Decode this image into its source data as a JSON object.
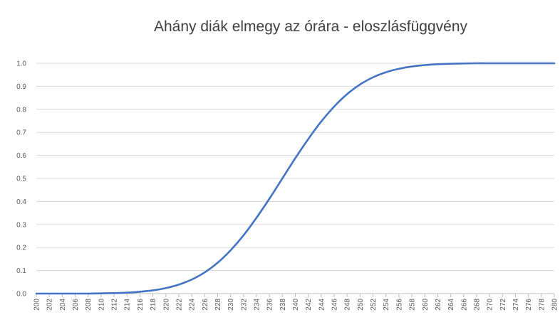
{
  "chart_data": {
    "type": "line",
    "title": "Ahány diák elmegy az órára  -  eloszlásfüggvény",
    "xlabel": "",
    "ylabel": "",
    "x_ticks": [
      "200",
      "202",
      "204",
      "206",
      "208",
      "210",
      "212",
      "214",
      "216",
      "218",
      "220",
      "222",
      "224",
      "226",
      "228",
      "230",
      "232",
      "234",
      "236",
      "238",
      "240",
      "242",
      "244",
      "246",
      "248",
      "250",
      "252",
      "254",
      "256",
      "258",
      "260",
      "262",
      "264",
      "266",
      "268",
      "270",
      "272",
      "274",
      "276",
      "278",
      "280"
    ],
    "y_ticks": [
      "0.0",
      "0.1",
      "0.2",
      "0.3",
      "0.4",
      "0.5",
      "0.6",
      "0.7",
      "0.8",
      "0.9",
      "1.0"
    ],
    "xlim": [
      200,
      280
    ],
    "ylim": [
      0,
      1
    ],
    "grid": true,
    "legend": "none",
    "colors": {
      "line": "#4472C4",
      "grid": "#D9D9D9",
      "axis": "#BFBFBF",
      "text": "#595959"
    },
    "series": [
      {
        "x": [
          200,
          202,
          204,
          206,
          208,
          210,
          212,
          214,
          216,
          218,
          220,
          222,
          224,
          226,
          228,
          230,
          232,
          234,
          236,
          238,
          240,
          242,
          244,
          246,
          248,
          250,
          252,
          254,
          256,
          258,
          260,
          262,
          264,
          266,
          268,
          270,
          272,
          274,
          276,
          278,
          280
        ],
        "values": [
          0.0,
          0.0,
          0.0,
          0.0,
          0.0,
          0.001,
          0.002,
          0.004,
          0.008,
          0.014,
          0.024,
          0.039,
          0.061,
          0.092,
          0.134,
          0.188,
          0.253,
          0.329,
          0.412,
          0.5,
          0.588,
          0.671,
          0.747,
          0.812,
          0.866,
          0.908,
          0.939,
          0.961,
          0.976,
          0.986,
          0.992,
          0.996,
          0.998,
          0.999,
          1.0,
          1.0,
          1.0,
          1.0,
          1.0,
          1.0,
          1.0
        ]
      }
    ]
  }
}
